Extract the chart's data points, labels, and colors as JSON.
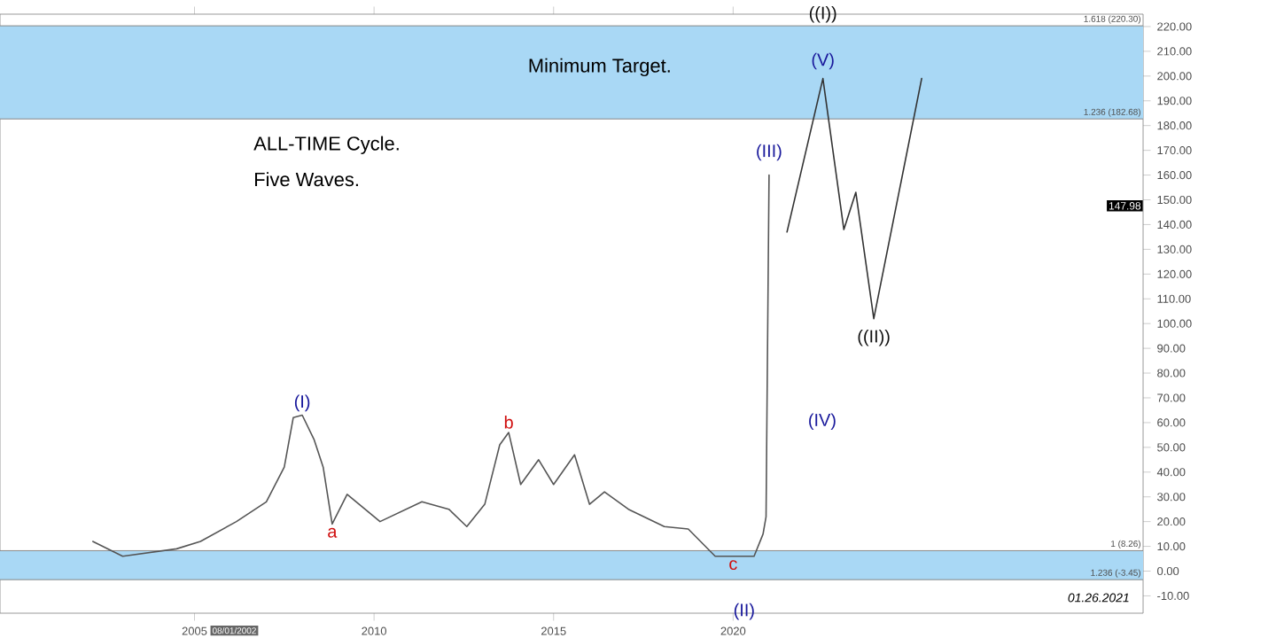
{
  "chart_data": {
    "type": "line",
    "annotations": [
      {
        "text": "(I)",
        "x": "2008-01",
        "y": 63
      },
      {
        "text": "a",
        "x": "2008-11",
        "y": 19
      },
      {
        "text": "b",
        "x": "2013-10",
        "y": 56
      },
      {
        "text": "c",
        "x": "2020-01",
        "y": 6
      },
      {
        "text": "(III)",
        "x": "2021-01",
        "y": 160
      },
      {
        "text": "((I))",
        "x": "2022-07",
        "y": 220
      },
      {
        "text": "(V)",
        "x": "2022-07",
        "y": 199
      },
      {
        "text": "((II))",
        "x": "2023-12",
        "y": 102
      },
      "(II)",
      "(IV)",
      "147.98",
      "ALL-TIME Cycle.",
      "Five Waves.",
      "Minimum Target.",
      "01.26.2021",
      "08/01/2002"
    ],
    "series": [
      {
        "color": "#555555",
        "x": [
          "2002-03",
          "2003-01",
          "2004-07",
          "2005-03",
          "2006-03",
          "2007-01",
          "2007-07",
          "2007-10",
          "2008-01",
          "2008-05",
          "2008-08",
          "2008-11",
          "2009-04",
          "2010-03",
          "2011-05",
          "2012-02",
          "2012-08",
          "2013-02",
          "2013-07",
          "2013-10",
          "2014-02",
          "2014-08",
          "2015-01",
          "2015-08",
          "2016-01",
          "2016-06",
          "2017-02",
          "2018-02",
          "2018-10",
          "2019-07",
          "2020-01",
          "2020-08",
          "2020-11",
          "2020-12",
          "2021-01"
        ],
        "values": [
          12,
          6,
          9,
          12,
          20,
          28,
          42,
          62,
          63,
          53,
          42,
          19,
          31,
          20,
          28,
          25,
          18,
          27,
          51,
          56,
          35,
          45,
          35,
          47,
          27,
          32,
          25,
          18,
          17,
          6,
          6,
          6,
          15,
          22,
          160
        ]
      },
      {
        "color": "#333333",
        "x": [
          "2021-07",
          "2022-07",
          "2023-02",
          "2023-06",
          "2023-12",
          "2025-04"
        ],
        "values": [
          137,
          199,
          138,
          153,
          102,
          199
        ]
      }
    ],
    "bands": [
      {
        "axis": "y",
        "from": 182.68,
        "to": 220.3,
        "color": "#a9d8f5"
      },
      {
        "axis": "y",
        "from": -3.45,
        "to": 8.26,
        "color": "#a9d8f5"
      }
    ],
    "ref_lines": [
      {
        "axis": "y",
        "value": 220.3,
        "label": "1.618 (220.30)",
        "color": "#888888"
      },
      {
        "axis": "y",
        "value": 182.68,
        "label": "1.236 (182.68)",
        "color": "#888888"
      },
      {
        "axis": "y",
        "value": 8.26,
        "label": "1 (8.26)",
        "color": "#888888"
      },
      {
        "axis": "y",
        "value": -3.45,
        "label": "1.236 (-3.45)",
        "color": "#888888"
      }
    ],
    "xlim": [
      "1999-08",
      "2031-06"
    ],
    "xticks": [
      "2005",
      "2010",
      "2015",
      "2020"
    ],
    "ylim": [
      -17,
      225
    ],
    "yticks": [
      {
        "value": -10,
        "label": "-10.00"
      },
      {
        "value": 0,
        "label": "0.00"
      },
      {
        "value": 10,
        "label": "10.00"
      },
      {
        "value": 20,
        "label": "20.00"
      },
      {
        "value": 30,
        "label": "30.00"
      },
      {
        "value": 40,
        "label": "40.00"
      },
      {
        "value": 50,
        "label": "50.00"
      },
      {
        "value": 60,
        "label": "60.00"
      },
      {
        "value": 70,
        "label": "70.00"
      },
      {
        "value": 80,
        "label": "80.00"
      },
      {
        "value": 90,
        "label": "90.00"
      },
      {
        "value": 100,
        "label": "100.00"
      },
      {
        "value": 110,
        "label": "110.00"
      },
      {
        "value": 120,
        "label": "120.00"
      },
      {
        "value": 130,
        "label": "130.00"
      },
      {
        "value": 140,
        "label": "140.00"
      },
      {
        "value": 150,
        "label": "150.00"
      },
      {
        "value": 160,
        "label": "160.00"
      },
      {
        "value": 170,
        "label": "170.00"
      },
      {
        "value": 180,
        "label": "180.00"
      },
      {
        "value": 190,
        "label": "190.00"
      },
      {
        "value": 200,
        "label": "200.00"
      },
      {
        "value": 210,
        "label": "210.00"
      },
      {
        "value": 220,
        "label": "220.00"
      }
    ],
    "grid": false,
    "marker": "none",
    "line_style": "solid"
  }
}
